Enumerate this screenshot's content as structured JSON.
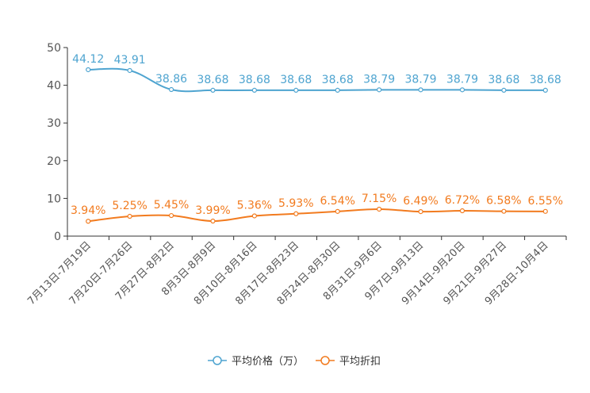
{
  "chart_data": {
    "type": "line",
    "title": "",
    "xlabel": "",
    "ylabel": "",
    "ylim": [
      0,
      50
    ],
    "yticks": [
      0,
      10,
      20,
      30,
      40,
      50
    ],
    "grid": false,
    "legend_position": "bottom-center",
    "categories": [
      "7月13日-7月19日",
      "7月20日-7月26日",
      "7月27日-8月2日",
      "8月3日-8月9日",
      "8月10日-8月16日",
      "8月17日-8月23日",
      "8月24日-8月30日",
      "8月31日-9月6日",
      "9月7日-9月13日",
      "9月14日-9月20日",
      "9月21日-9月27日",
      "9月28日-10月4日"
    ],
    "series": [
      {
        "name": "平均价格（万）",
        "color": "#4ea4d0",
        "values": [
          44.12,
          43.91,
          38.86,
          38.68,
          38.68,
          38.68,
          38.68,
          38.79,
          38.79,
          38.79,
          38.68,
          38.68
        ],
        "labels": [
          "44.12",
          "43.91",
          "38.86",
          "38.68",
          "38.68",
          "38.68",
          "38.68",
          "38.79",
          "38.79",
          "38.79",
          "38.68",
          "38.68"
        ]
      },
      {
        "name": "平均折扣",
        "color": "#f27b1f",
        "values": [
          3.94,
          5.25,
          5.45,
          3.99,
          5.36,
          5.93,
          6.54,
          7.15,
          6.49,
          6.72,
          6.58,
          6.55
        ],
        "labels": [
          "3.94%",
          "5.25%",
          "5.45%",
          "3.99%",
          "5.36%",
          "5.93%",
          "6.54%",
          "7.15%",
          "6.49%",
          "6.72%",
          "6.58%",
          "6.55%"
        ]
      }
    ]
  }
}
